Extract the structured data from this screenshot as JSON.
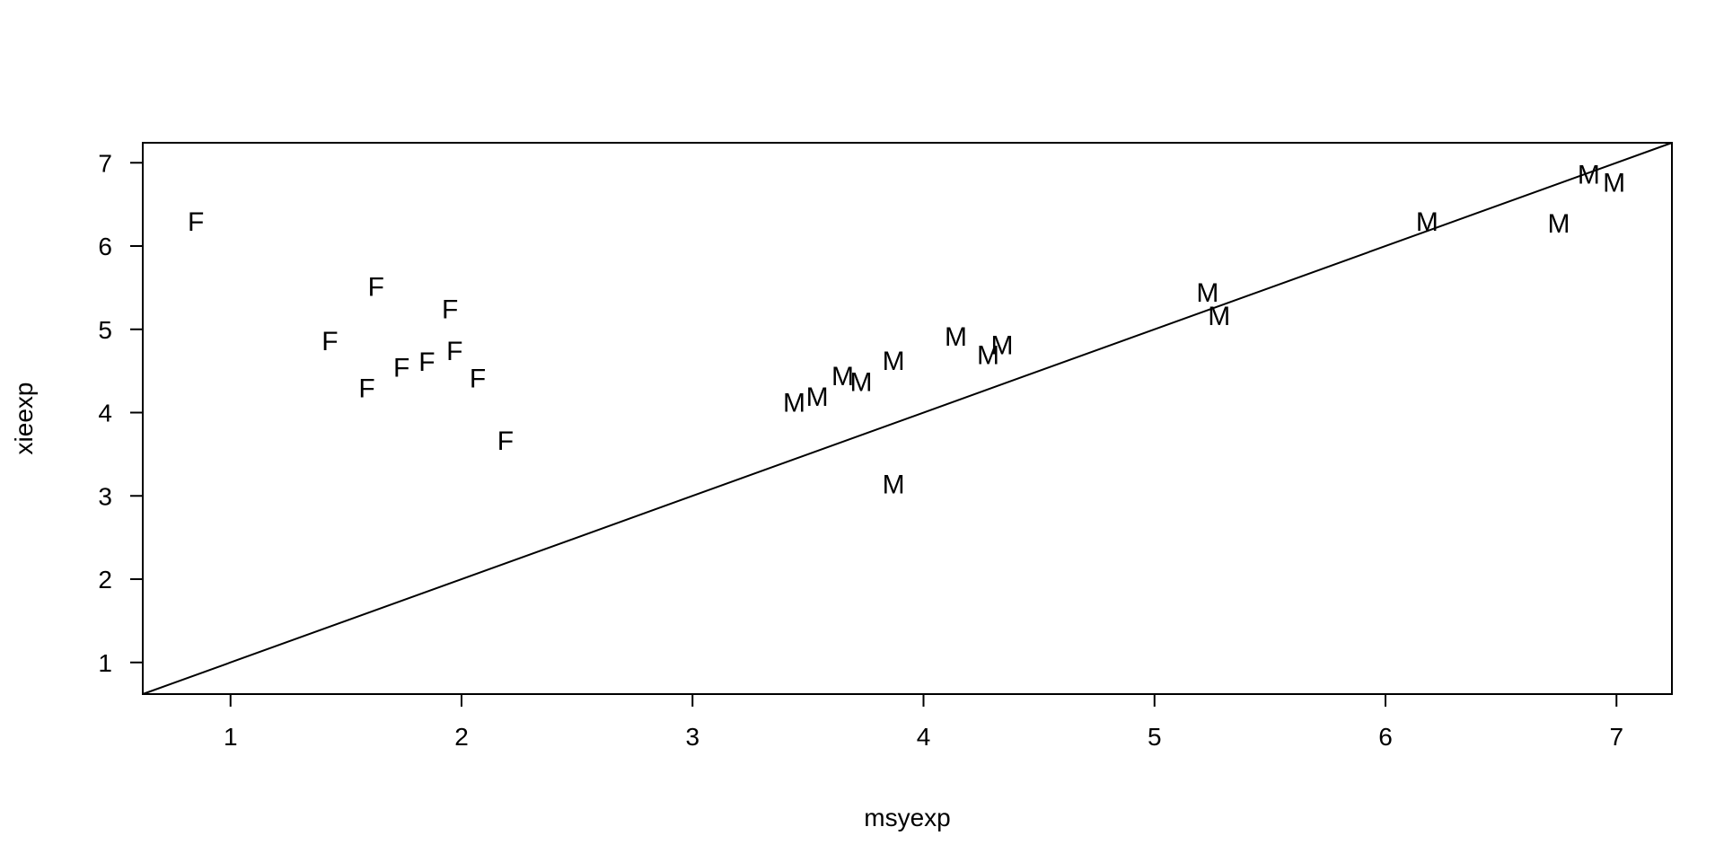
{
  "chart_data": {
    "type": "scatter",
    "title": "",
    "xlabel": "msyexp",
    "ylabel": "xieexp",
    "xlim": [
      0.62,
      7.24
    ],
    "ylim": [
      0.62,
      7.24
    ],
    "x_ticks": [
      1,
      2,
      3,
      4,
      5,
      6,
      7
    ],
    "y_ticks": [
      1,
      2,
      3,
      4,
      5,
      6,
      7
    ],
    "grid": false,
    "reference_line": {
      "slope": 1,
      "intercept": 0
    },
    "points": [
      {
        "label": "F",
        "x": 0.85,
        "y": 6.3
      },
      {
        "label": "F",
        "x": 1.63,
        "y": 5.52
      },
      {
        "label": "F",
        "x": 1.95,
        "y": 5.25
      },
      {
        "label": "F",
        "x": 1.43,
        "y": 4.87
      },
      {
        "label": "F",
        "x": 1.97,
        "y": 4.75
      },
      {
        "label": "F",
        "x": 1.85,
        "y": 4.62
      },
      {
        "label": "F",
        "x": 1.74,
        "y": 4.55
      },
      {
        "label": "F",
        "x": 2.07,
        "y": 4.42
      },
      {
        "label": "F",
        "x": 1.59,
        "y": 4.3
      },
      {
        "label": "F",
        "x": 2.19,
        "y": 3.67
      },
      {
        "label": "M",
        "x": 3.44,
        "y": 4.13
      },
      {
        "label": "M",
        "x": 3.54,
        "y": 4.2
      },
      {
        "label": "M",
        "x": 3.65,
        "y": 4.45
      },
      {
        "label": "M",
        "x": 3.73,
        "y": 4.38
      },
      {
        "label": "M",
        "x": 3.87,
        "y": 4.63
      },
      {
        "label": "M",
        "x": 4.14,
        "y": 4.92
      },
      {
        "label": "M",
        "x": 4.28,
        "y": 4.7
      },
      {
        "label": "M",
        "x": 4.34,
        "y": 4.82
      },
      {
        "label": "M",
        "x": 3.87,
        "y": 3.15
      },
      {
        "label": "M",
        "x": 5.23,
        "y": 5.45
      },
      {
        "label": "M",
        "x": 5.28,
        "y": 5.17
      },
      {
        "label": "M",
        "x": 6.18,
        "y": 6.3
      },
      {
        "label": "M",
        "x": 6.75,
        "y": 6.28
      },
      {
        "label": "M",
        "x": 6.88,
        "y": 6.87
      },
      {
        "label": "M",
        "x": 6.99,
        "y": 6.77
      }
    ]
  }
}
